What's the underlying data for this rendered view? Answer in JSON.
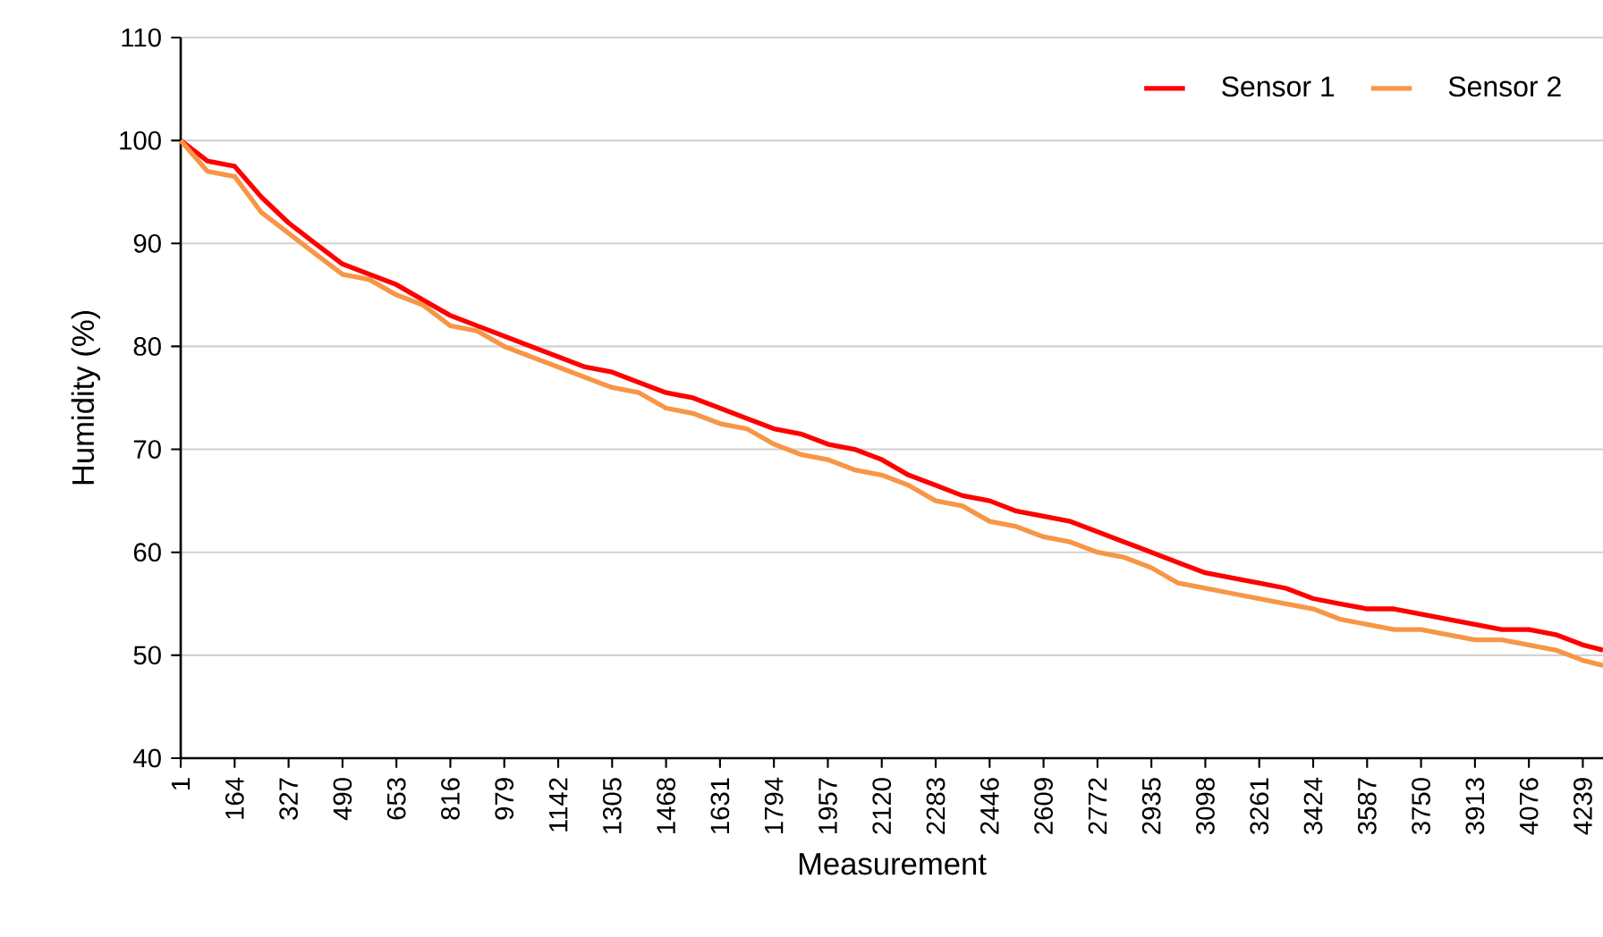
{
  "chart_data": {
    "type": "line",
    "xlabel": "Measurement",
    "ylabel": "Humidity (%)",
    "x": [
      1,
      82,
      164,
      245,
      327,
      408,
      490,
      571,
      653,
      734,
      816,
      897,
      979,
      1060,
      1142,
      1223,
      1305,
      1386,
      1468,
      1549,
      1631,
      1712,
      1794,
      1875,
      1957,
      2038,
      2120,
      2201,
      2283,
      2364,
      2446,
      2527,
      2609,
      2690,
      2772,
      2853,
      2935,
      3016,
      3098,
      3179,
      3261,
      3342,
      3424,
      3505,
      3587,
      3668,
      3750,
      3831,
      3913,
      3994,
      4076,
      4157,
      4239,
      4300
    ],
    "series": [
      {
        "name": "Sensor 1",
        "color": "#ff0000",
        "values": [
          100,
          98,
          97.5,
          94.5,
          92,
          90,
          88,
          87,
          86,
          84.5,
          83,
          82,
          81,
          80,
          79,
          78,
          77.5,
          76.5,
          75.5,
          75,
          74,
          73,
          72,
          71.5,
          70.5,
          70,
          69,
          67.5,
          66.5,
          65.5,
          65,
          64,
          63.5,
          63,
          62,
          61,
          60,
          59,
          58,
          57.5,
          57,
          56.5,
          55.5,
          55,
          54.5,
          54.5,
          54,
          53.5,
          53,
          52.5,
          52.5,
          52,
          51,
          50.5
        ]
      },
      {
        "name": "Sensor 2",
        "color": "#f79646",
        "values": [
          100,
          97,
          96.5,
          93,
          91,
          89,
          87,
          86.5,
          85,
          84,
          82,
          81.5,
          80,
          79,
          78,
          77,
          76,
          75.5,
          74,
          73.5,
          72.5,
          72,
          70.5,
          69.5,
          69,
          68,
          67.5,
          66.5,
          65,
          64.5,
          63,
          62.5,
          61.5,
          61,
          60,
          59.5,
          58.5,
          57,
          56.5,
          56,
          55.5,
          55,
          54.5,
          53.5,
          53,
          52.5,
          52.5,
          52,
          51.5,
          51.5,
          51,
          50.5,
          49.5,
          49
        ]
      }
    ],
    "xlim": [
      1,
      4300
    ],
    "xticks": [
      1,
      164,
      327,
      490,
      653,
      816,
      979,
      1142,
      1305,
      1468,
      1631,
      1794,
      1957,
      2120,
      2283,
      2446,
      2609,
      2772,
      2935,
      3098,
      3261,
      3424,
      3587,
      3750,
      3913,
      4076,
      4239
    ],
    "ylim": [
      40,
      110
    ],
    "yticks": [
      40,
      50,
      60,
      70,
      80,
      90,
      100,
      110
    ],
    "grid": "y",
    "legend": "top right",
    "marker": "none",
    "line_style": "solid"
  }
}
